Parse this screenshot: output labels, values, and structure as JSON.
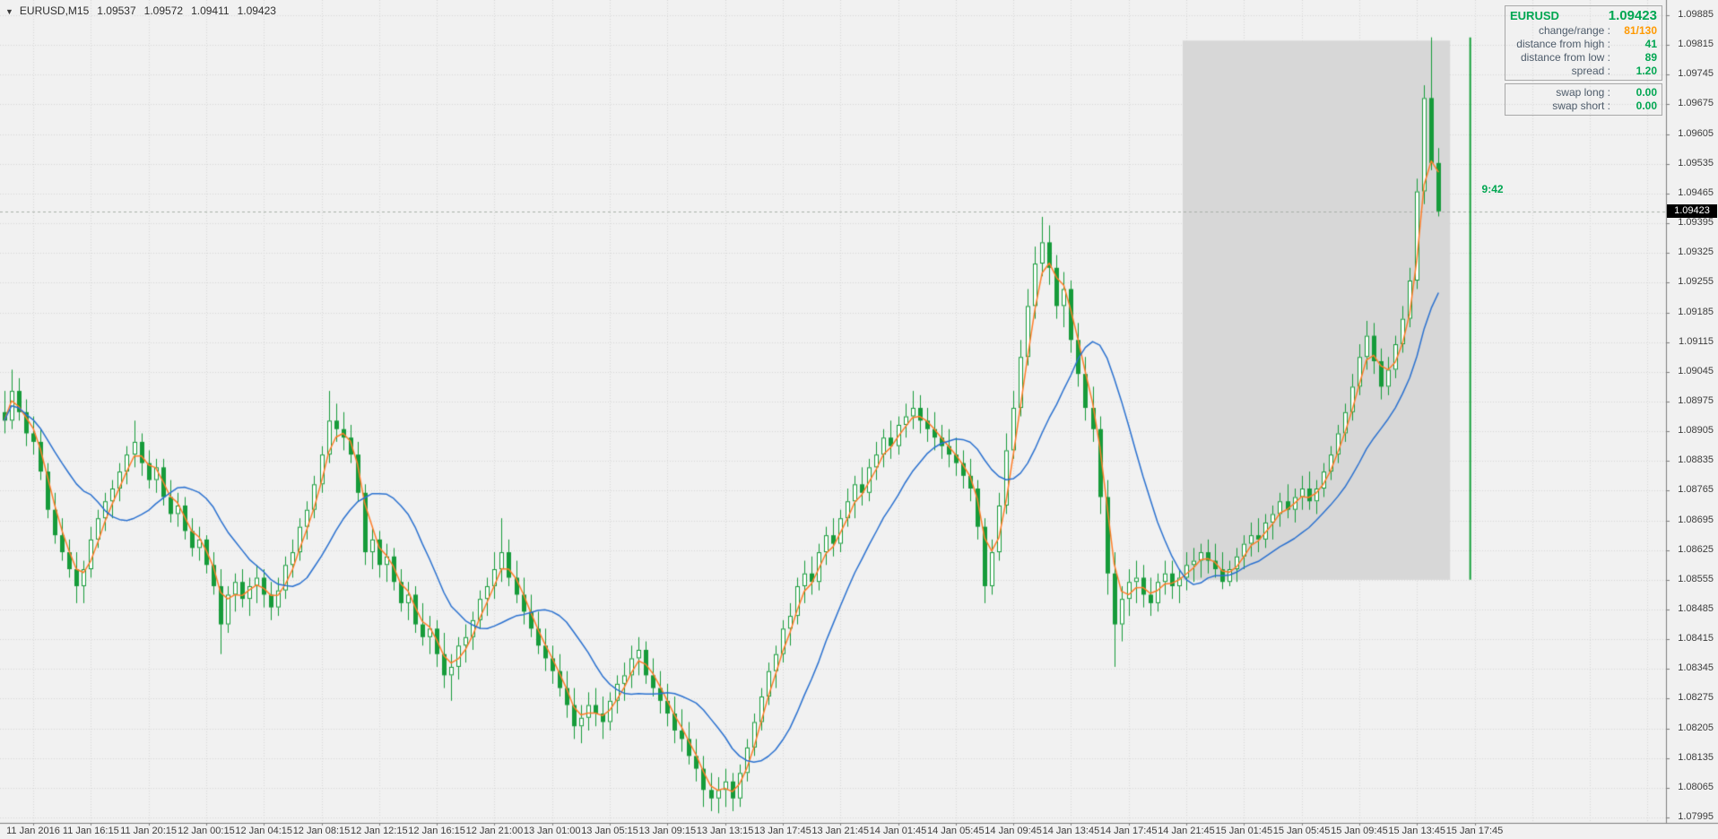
{
  "window": {
    "marker": "▼",
    "symbol_period": "EURUSD,M15",
    "ohlc": {
      "open": "1.09537",
      "high": "1.09572",
      "low": "1.09411",
      "close": "1.09423"
    }
  },
  "current_price": "1.09423",
  "countdown": "9:42",
  "info_panel": {
    "symbol": "EURUSD",
    "price": "1.09423",
    "stats": [
      {
        "label": "change/range :",
        "value": "81/130",
        "color": "#ff9900"
      },
      {
        "label": "distance from high :",
        "value": "41",
        "color": "#00a651"
      },
      {
        "label": "distance from low :",
        "value": "89",
        "color": "#00a651"
      },
      {
        "label": "spread :",
        "value": "1.20",
        "color": "#00a651"
      }
    ],
    "swaps": [
      {
        "label": "swap long :",
        "value": "0.00",
        "color": "#00a651"
      },
      {
        "label": "swap short :",
        "value": "0.00",
        "color": "#00a651"
      }
    ]
  },
  "chart_data": {
    "type": "candlestick",
    "symbol": "EURUSD",
    "timeframe": "M15",
    "current_price": 1.09423,
    "x_labels": [
      "11 Jan 2016",
      "11 Jan 16:15",
      "11 Jan 20:15",
      "12 Jan 00:15",
      "12 Jan 04:15",
      "12 Jan 08:15",
      "12 Jan 12:15",
      "12 Jan 16:15",
      "12 Jan 21:00",
      "13 Jan 01:00",
      "13 Jan 05:15",
      "13 Jan 09:15",
      "13 Jan 13:15",
      "13 Jan 17:45",
      "13 Jan 21:45",
      "14 Jan 01:45",
      "14 Jan 05:45",
      "14 Jan 09:45",
      "14 Jan 13:45",
      "14 Jan 17:45",
      "14 Jan 21:45",
      "15 Jan 01:45",
      "15 Jan 05:45",
      "15 Jan 09:45",
      "15 Jan 13:45",
      "15 Jan 17:45"
    ],
    "y_axis_labels": [
      "1.09885",
      "1.09815",
      "1.09745",
      "1.09675",
      "1.09605",
      "1.09535",
      "1.09465",
      "1.09395",
      "1.09325",
      "1.09255",
      "1.09185",
      "1.09115",
      "1.09045",
      "1.08975",
      "1.08905",
      "1.08835",
      "1.08765",
      "1.08695",
      "1.08625",
      "1.08555",
      "1.08485",
      "1.08415",
      "1.08345",
      "1.08275",
      "1.08205",
      "1.08135",
      "1.08065",
      "1.07995"
    ],
    "indicators": [
      {
        "name": "fast-ma",
        "method": "lwma",
        "period": 4,
        "color": "#ff7d28"
      },
      {
        "name": "slow-ma",
        "method": "sma",
        "period": 13,
        "color": "#2a71d0"
      }
    ],
    "highlight_box": {
      "from_index": 164,
      "to_index": 200.6,
      "price_top": 1.09825,
      "price_bottom": 1.08555
    },
    "range_line": {
      "index": 203.4,
      "price_top": 1.09833,
      "price_bottom": 1.08555,
      "color": "#16a03a"
    },
    "countdown_pos": {
      "index": 205.0,
      "price": 1.09475
    },
    "colors": {
      "background": "#f1f1f1",
      "grid": "#d8d8d8",
      "candle": "#169b3a",
      "bull_fill": "#ffffff",
      "bear_fill": "#169b3a",
      "box_fill": "rgba(125,125,125,0.22)",
      "bid_line": "#a8b0a8",
      "axis_line": "#7f7f7f",
      "badge_bg": "#000000"
    },
    "candles": [
      [
        1.0895,
        1.09,
        1.089,
        1.0893
      ],
      [
        1.0893,
        1.0905,
        1.0891,
        1.09
      ],
      [
        1.09,
        1.0903,
        1.0893,
        1.0895
      ],
      [
        1.0895,
        1.0898,
        1.0887,
        1.089
      ],
      [
        1.089,
        1.0894,
        1.0885,
        1.0888
      ],
      [
        1.0888,
        1.0891,
        1.0879,
        1.0881
      ],
      [
        1.0881,
        1.0883,
        1.087,
        1.0872
      ],
      [
        1.0872,
        1.0876,
        1.0864,
        1.0866
      ],
      [
        1.0866,
        1.087,
        1.086,
        1.0862
      ],
      [
        1.0862,
        1.0865,
        1.0856,
        1.0858
      ],
      [
        1.0858,
        1.0862,
        1.085,
        1.0854
      ],
      [
        1.0854,
        1.086,
        1.085,
        1.0858
      ],
      [
        1.0858,
        1.0868,
        1.0856,
        1.0865
      ],
      [
        1.0865,
        1.0872,
        1.0863,
        1.087
      ],
      [
        1.087,
        1.0876,
        1.0867,
        1.0874
      ],
      [
        1.0874,
        1.0879,
        1.087,
        1.0877
      ],
      [
        1.0877,
        1.0883,
        1.0874,
        1.0881
      ],
      [
        1.0881,
        1.0887,
        1.0878,
        1.0885
      ],
      [
        1.0885,
        1.0893,
        1.0882,
        1.0888
      ],
      [
        1.0888,
        1.089,
        1.088,
        1.0883
      ],
      [
        1.0883,
        1.0886,
        1.0877,
        1.0879
      ],
      [
        1.0879,
        1.0884,
        1.0876,
        1.0882
      ],
      [
        1.0882,
        1.0884,
        1.0873,
        1.0875
      ],
      [
        1.0875,
        1.0879,
        1.0869,
        1.0871
      ],
      [
        1.0871,
        1.0876,
        1.0868,
        1.0873
      ],
      [
        1.0873,
        1.0875,
        1.0865,
        1.0867
      ],
      [
        1.0867,
        1.087,
        1.0861,
        1.0863
      ],
      [
        1.0863,
        1.0868,
        1.086,
        1.0865
      ],
      [
        1.0865,
        1.0866,
        1.0857,
        1.0859
      ],
      [
        1.0859,
        1.0862,
        1.0852,
        1.0854
      ],
      [
        1.0854,
        1.0858,
        1.0838,
        1.0845
      ],
      [
        1.0845,
        1.0854,
        1.0843,
        1.0852
      ],
      [
        1.0852,
        1.0857,
        1.0848,
        1.0855
      ],
      [
        1.0855,
        1.0858,
        1.0849,
        1.0851
      ],
      [
        1.0851,
        1.0856,
        1.0847,
        1.0854
      ],
      [
        1.0854,
        1.0859,
        1.085,
        1.0856
      ],
      [
        1.0856,
        1.0858,
        1.0849,
        1.0852
      ],
      [
        1.0852,
        1.0855,
        1.0846,
        1.0849
      ],
      [
        1.0849,
        1.0856,
        1.0847,
        1.0853
      ],
      [
        1.0853,
        1.0861,
        1.0851,
        1.0859
      ],
      [
        1.0859,
        1.0865,
        1.0856,
        1.0862
      ],
      [
        1.0862,
        1.087,
        1.086,
        1.0868
      ],
      [
        1.0868,
        1.0874,
        1.0865,
        1.0872
      ],
      [
        1.0872,
        1.088,
        1.087,
        1.0878
      ],
      [
        1.0878,
        1.0887,
        1.0876,
        1.0885
      ],
      [
        1.0885,
        1.09,
        1.0883,
        1.0893
      ],
      [
        1.0893,
        1.0897,
        1.0888,
        1.0891
      ],
      [
        1.0891,
        1.0895,
        1.0886,
        1.0889
      ],
      [
        1.0889,
        1.0892,
        1.0883,
        1.0885
      ],
      [
        1.0885,
        1.0888,
        1.0874,
        1.0876
      ],
      [
        1.0876,
        1.0878,
        1.0859,
        1.0862
      ],
      [
        1.0862,
        1.0868,
        1.0858,
        1.0865
      ],
      [
        1.0865,
        1.0867,
        1.0856,
        1.0859
      ],
      [
        1.0859,
        1.0864,
        1.0855,
        1.0861
      ],
      [
        1.0861,
        1.0863,
        1.0853,
        1.0855
      ],
      [
        1.0855,
        1.0858,
        1.0848,
        1.085
      ],
      [
        1.085,
        1.0855,
        1.0846,
        1.0852
      ],
      [
        1.0852,
        1.0854,
        1.0843,
        1.0845
      ],
      [
        1.0845,
        1.085,
        1.084,
        1.0842
      ],
      [
        1.0842,
        1.0847,
        1.0838,
        1.0844
      ],
      [
        1.0844,
        1.0846,
        1.0835,
        1.0838
      ],
      [
        1.0838,
        1.0843,
        1.083,
        1.0833
      ],
      [
        1.0833,
        1.0838,
        1.0827,
        1.0835
      ],
      [
        1.0835,
        1.0842,
        1.0832,
        1.084
      ],
      [
        1.084,
        1.0845,
        1.0836,
        1.0842
      ],
      [
        1.0842,
        1.0848,
        1.0839,
        1.0846
      ],
      [
        1.0846,
        1.0853,
        1.0844,
        1.0851
      ],
      [
        1.0851,
        1.0856,
        1.0847,
        1.0854
      ],
      [
        1.0854,
        1.0862,
        1.0851,
        1.0858
      ],
      [
        1.0858,
        1.087,
        1.0855,
        1.0862
      ],
      [
        1.0862,
        1.0865,
        1.0854,
        1.0856
      ],
      [
        1.0856,
        1.086,
        1.085,
        1.0852
      ],
      [
        1.0852,
        1.0856,
        1.0845,
        1.0848
      ],
      [
        1.0848,
        1.0852,
        1.0842,
        1.0844
      ],
      [
        1.0844,
        1.0848,
        1.0838,
        1.084
      ],
      [
        1.084,
        1.0844,
        1.0834,
        1.0837
      ],
      [
        1.0837,
        1.084,
        1.0831,
        1.0834
      ],
      [
        1.0834,
        1.0838,
        1.0828,
        1.083
      ],
      [
        1.083,
        1.0834,
        1.0823,
        1.0826
      ],
      [
        1.0826,
        1.083,
        1.0818,
        1.0821
      ],
      [
        1.0821,
        1.0826,
        1.0817,
        1.0823
      ],
      [
        1.0823,
        1.0829,
        1.082,
        1.0826
      ],
      [
        1.0826,
        1.083,
        1.0821,
        1.0824
      ],
      [
        1.0824,
        1.0828,
        1.0818,
        1.0822
      ],
      [
        1.0822,
        1.0829,
        1.082,
        1.0827
      ],
      [
        1.0827,
        1.0833,
        1.0824,
        1.0831
      ],
      [
        1.0831,
        1.0836,
        1.0827,
        1.0833
      ],
      [
        1.0833,
        1.084,
        1.083,
        1.0837
      ],
      [
        1.0837,
        1.0842,
        1.0833,
        1.0839
      ],
      [
        1.0839,
        1.0841,
        1.0831,
        1.0833
      ],
      [
        1.0833,
        1.0837,
        1.0828,
        1.083
      ],
      [
        1.083,
        1.0834,
        1.0824,
        1.0827
      ],
      [
        1.0827,
        1.0831,
        1.0821,
        1.0824
      ],
      [
        1.0824,
        1.0828,
        1.0817,
        1.082
      ],
      [
        1.082,
        1.0825,
        1.0815,
        1.0818
      ],
      [
        1.0818,
        1.0822,
        1.0812,
        1.0814
      ],
      [
        1.0814,
        1.0818,
        1.0808,
        1.0811
      ],
      [
        1.0811,
        1.0814,
        1.0802,
        1.0806
      ],
      [
        1.0806,
        1.081,
        1.0801,
        1.0804
      ],
      [
        1.0804,
        1.0809,
        1.08005,
        1.0806
      ],
      [
        1.0806,
        1.0811,
        1.0802,
        1.0808
      ],
      [
        1.0808,
        1.081,
        1.0801,
        1.0804
      ],
      [
        1.0804,
        1.0812,
        1.0802,
        1.081
      ],
      [
        1.081,
        1.0818,
        1.0808,
        1.0816
      ],
      [
        1.0816,
        1.0824,
        1.0814,
        1.0822
      ],
      [
        1.0822,
        1.083,
        1.082,
        1.0828
      ],
      [
        1.0828,
        1.0836,
        1.0826,
        1.0834
      ],
      [
        1.0834,
        1.084,
        1.083,
        1.0838
      ],
      [
        1.0838,
        1.0846,
        1.0836,
        1.0844
      ],
      [
        1.0844,
        1.085,
        1.084,
        1.0847
      ],
      [
        1.0847,
        1.0856,
        1.0845,
        1.0854
      ],
      [
        1.0854,
        1.086,
        1.085,
        1.0857
      ],
      [
        1.0857,
        1.0861,
        1.0852,
        1.0855
      ],
      [
        1.0855,
        1.0864,
        1.0853,
        1.0862
      ],
      [
        1.0862,
        1.0868,
        1.0859,
        1.0866
      ],
      [
        1.0866,
        1.087,
        1.0861,
        1.0864
      ],
      [
        1.0864,
        1.0872,
        1.0862,
        1.087
      ],
      [
        1.087,
        1.0877,
        1.0868,
        1.0874
      ],
      [
        1.0874,
        1.088,
        1.087,
        1.0878
      ],
      [
        1.0878,
        1.0882,
        1.0873,
        1.0876
      ],
      [
        1.0876,
        1.0884,
        1.0874,
        1.0882
      ],
      [
        1.0882,
        1.0888,
        1.0879,
        1.0885
      ],
      [
        1.0885,
        1.0891,
        1.0882,
        1.0889
      ],
      [
        1.0889,
        1.0893,
        1.0884,
        1.0887
      ],
      [
        1.0887,
        1.0894,
        1.0885,
        1.0892
      ],
      [
        1.0892,
        1.0897,
        1.0889,
        1.0894
      ],
      [
        1.0894,
        1.09,
        1.0891,
        1.0896
      ],
      [
        1.0896,
        1.0899,
        1.089,
        1.0893
      ],
      [
        1.0893,
        1.0896,
        1.0888,
        1.0891
      ],
      [
        1.0891,
        1.0895,
        1.0886,
        1.0889
      ],
      [
        1.0889,
        1.0892,
        1.0884,
        1.0887
      ],
      [
        1.0887,
        1.0891,
        1.0882,
        1.0885
      ],
      [
        1.0885,
        1.0889,
        1.088,
        1.0883
      ],
      [
        1.0883,
        1.0886,
        1.0877,
        1.088
      ],
      [
        1.088,
        1.0884,
        1.0874,
        1.0877
      ],
      [
        1.0877,
        1.0879,
        1.0865,
        1.0868
      ],
      [
        1.0868,
        1.087,
        1.085,
        1.0854
      ],
      [
        1.0854,
        1.0865,
        1.0852,
        1.0862
      ],
      [
        1.0862,
        1.0876,
        1.086,
        1.0873
      ],
      [
        1.0873,
        1.089,
        1.0871,
        1.0886
      ],
      [
        1.0886,
        1.09,
        1.0884,
        1.0896
      ],
      [
        1.0896,
        1.0912,
        1.0894,
        1.0908
      ],
      [
        1.0908,
        1.0924,
        1.0906,
        1.092
      ],
      [
        1.092,
        1.0934,
        1.0917,
        1.093
      ],
      [
        1.093,
        1.0941,
        1.0927,
        1.0935
      ],
      [
        1.0935,
        1.0939,
        1.0925,
        1.0929
      ],
      [
        1.0929,
        1.0932,
        1.0917,
        1.092
      ],
      [
        1.092,
        1.0928,
        1.0915,
        1.0924
      ],
      [
        1.0924,
        1.0926,
        1.0909,
        1.0912
      ],
      [
        1.0912,
        1.0916,
        1.0901,
        1.0904
      ],
      [
        1.0904,
        1.0908,
        1.0893,
        1.0896
      ],
      [
        1.0896,
        1.0901,
        1.0888,
        1.0891
      ],
      [
        1.0891,
        1.0894,
        1.0871,
        1.0875
      ],
      [
        1.0875,
        1.0879,
        1.0852,
        1.0857
      ],
      [
        1.0857,
        1.0862,
        1.0835,
        1.0845
      ],
      [
        1.0845,
        1.0854,
        1.0841,
        1.0851
      ],
      [
        1.0851,
        1.0858,
        1.0847,
        1.0855
      ],
      [
        1.0855,
        1.086,
        1.085,
        1.0856
      ],
      [
        1.0856,
        1.0859,
        1.0849,
        1.0852
      ],
      [
        1.0852,
        1.0856,
        1.0847,
        1.085
      ],
      [
        1.085,
        1.0857,
        1.0848,
        1.0855
      ],
      [
        1.0855,
        1.086,
        1.0852,
        1.0857
      ],
      [
        1.0857,
        1.086,
        1.0851,
        1.0854
      ],
      [
        1.0854,
        1.0858,
        1.085,
        1.0856
      ],
      [
        1.0856,
        1.0862,
        1.0853,
        1.0859
      ],
      [
        1.0859,
        1.0863,
        1.0855,
        1.086
      ],
      [
        1.086,
        1.0864,
        1.0856,
        1.0862
      ],
      [
        1.0862,
        1.0865,
        1.0857,
        1.086
      ],
      [
        1.086,
        1.0864,
        1.0856,
        1.0858
      ],
      [
        1.0858,
        1.0862,
        1.08533,
        1.0855
      ],
      [
        1.0855,
        1.086,
        1.0854,
        1.0858
      ],
      [
        1.0858,
        1.0863,
        1.0855,
        1.0861
      ],
      [
        1.0861,
        1.0866,
        1.0858,
        1.0864
      ],
      [
        1.0864,
        1.0869,
        1.0861,
        1.0866
      ],
      [
        1.0866,
        1.087,
        1.0862,
        1.0865
      ],
      [
        1.0865,
        1.0871,
        1.0863,
        1.0869
      ],
      [
        1.0869,
        1.0873,
        1.0865,
        1.0871
      ],
      [
        1.0871,
        1.0876,
        1.0868,
        1.0874
      ],
      [
        1.0874,
        1.0878,
        1.087,
        1.0872
      ],
      [
        1.0872,
        1.0877,
        1.0869,
        1.0875
      ],
      [
        1.0875,
        1.088,
        1.0872,
        1.0877
      ],
      [
        1.0877,
        1.0881,
        1.0872,
        1.0874
      ],
      [
        1.0874,
        1.0879,
        1.0871,
        1.0877
      ],
      [
        1.0877,
        1.0883,
        1.0875,
        1.0881
      ],
      [
        1.0881,
        1.0887,
        1.0879,
        1.0885
      ],
      [
        1.0885,
        1.0892,
        1.0883,
        1.089
      ],
      [
        1.089,
        1.0897,
        1.0888,
        1.0895
      ],
      [
        1.0895,
        1.0904,
        1.0893,
        1.0901
      ],
      [
        1.0901,
        1.0911,
        1.0899,
        1.0908
      ],
      [
        1.0908,
        1.09165,
        1.0905,
        1.0913
      ],
      [
        1.0913,
        1.0916,
        1.0904,
        1.0907
      ],
      [
        1.0907,
        1.091,
        1.0898,
        1.0901
      ],
      [
        1.0901,
        1.0908,
        1.0899,
        1.0905
      ],
      [
        1.0905,
        1.0913,
        1.0903,
        1.0911
      ],
      [
        1.0911,
        1.092,
        1.0909,
        1.0917
      ],
      [
        1.0917,
        1.0929,
        1.0915,
        1.0926
      ],
      [
        1.0926,
        1.095,
        1.0924,
        1.0947
      ],
      [
        1.0947,
        1.0972,
        1.0944,
        1.0969
      ],
      [
        1.0969,
        1.09833,
        1.0952,
        1.09537
      ],
      [
        1.09537,
        1.09572,
        1.09411,
        1.09423
      ]
    ]
  }
}
